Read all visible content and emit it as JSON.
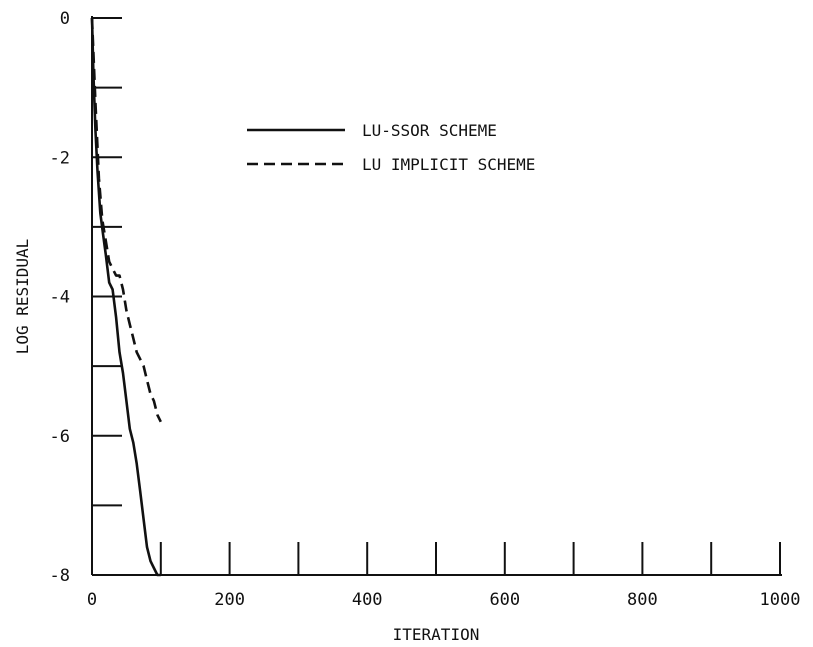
{
  "chart_data": {
    "type": "line",
    "title": "",
    "xlabel": "ITERATION",
    "ylabel": "LOG RESIDUAL",
    "xlim": [
      0,
      1000
    ],
    "ylim": [
      -8,
      0
    ],
    "x_tick_labels": [
      "0",
      "200",
      "400",
      "600",
      "800",
      "1000"
    ],
    "y_tick_labels": [
      "0",
      "-2",
      "-4",
      "-6",
      "-8"
    ],
    "grid": false,
    "legend_position": "top-center",
    "series": [
      {
        "name": "LU-SSOR SCHEME",
        "style": "solid",
        "color": "#111111",
        "x": [
          0,
          2,
          5,
          8,
          12,
          16,
          20,
          25,
          30,
          35,
          40,
          45,
          50,
          55,
          60,
          65,
          70,
          75,
          80,
          85,
          90,
          95,
          100
        ],
        "y": [
          0.0,
          -0.8,
          -1.6,
          -2.2,
          -2.8,
          -3.1,
          -3.4,
          -3.8,
          -3.9,
          -4.3,
          -4.8,
          -5.1,
          -5.5,
          -5.9,
          -6.1,
          -6.4,
          -6.8,
          -7.2,
          -7.6,
          -7.8,
          -7.9,
          -8.0,
          -8.0
        ]
      },
      {
        "name": "LU IMPLICIT SCHEME",
        "style": "dashed",
        "color": "#111111",
        "x": [
          0,
          5,
          10,
          15,
          20,
          25,
          30,
          35,
          40,
          45,
          50,
          55,
          60,
          65,
          70,
          75,
          80,
          85,
          90,
          95,
          100
        ],
        "y": [
          0.0,
          -1.2,
          -2.3,
          -2.9,
          -3.2,
          -3.5,
          -3.6,
          -3.7,
          -3.7,
          -3.9,
          -4.2,
          -4.4,
          -4.6,
          -4.8,
          -4.9,
          -5.0,
          -5.2,
          -5.4,
          -5.5,
          -5.7,
          -5.8
        ]
      }
    ]
  }
}
